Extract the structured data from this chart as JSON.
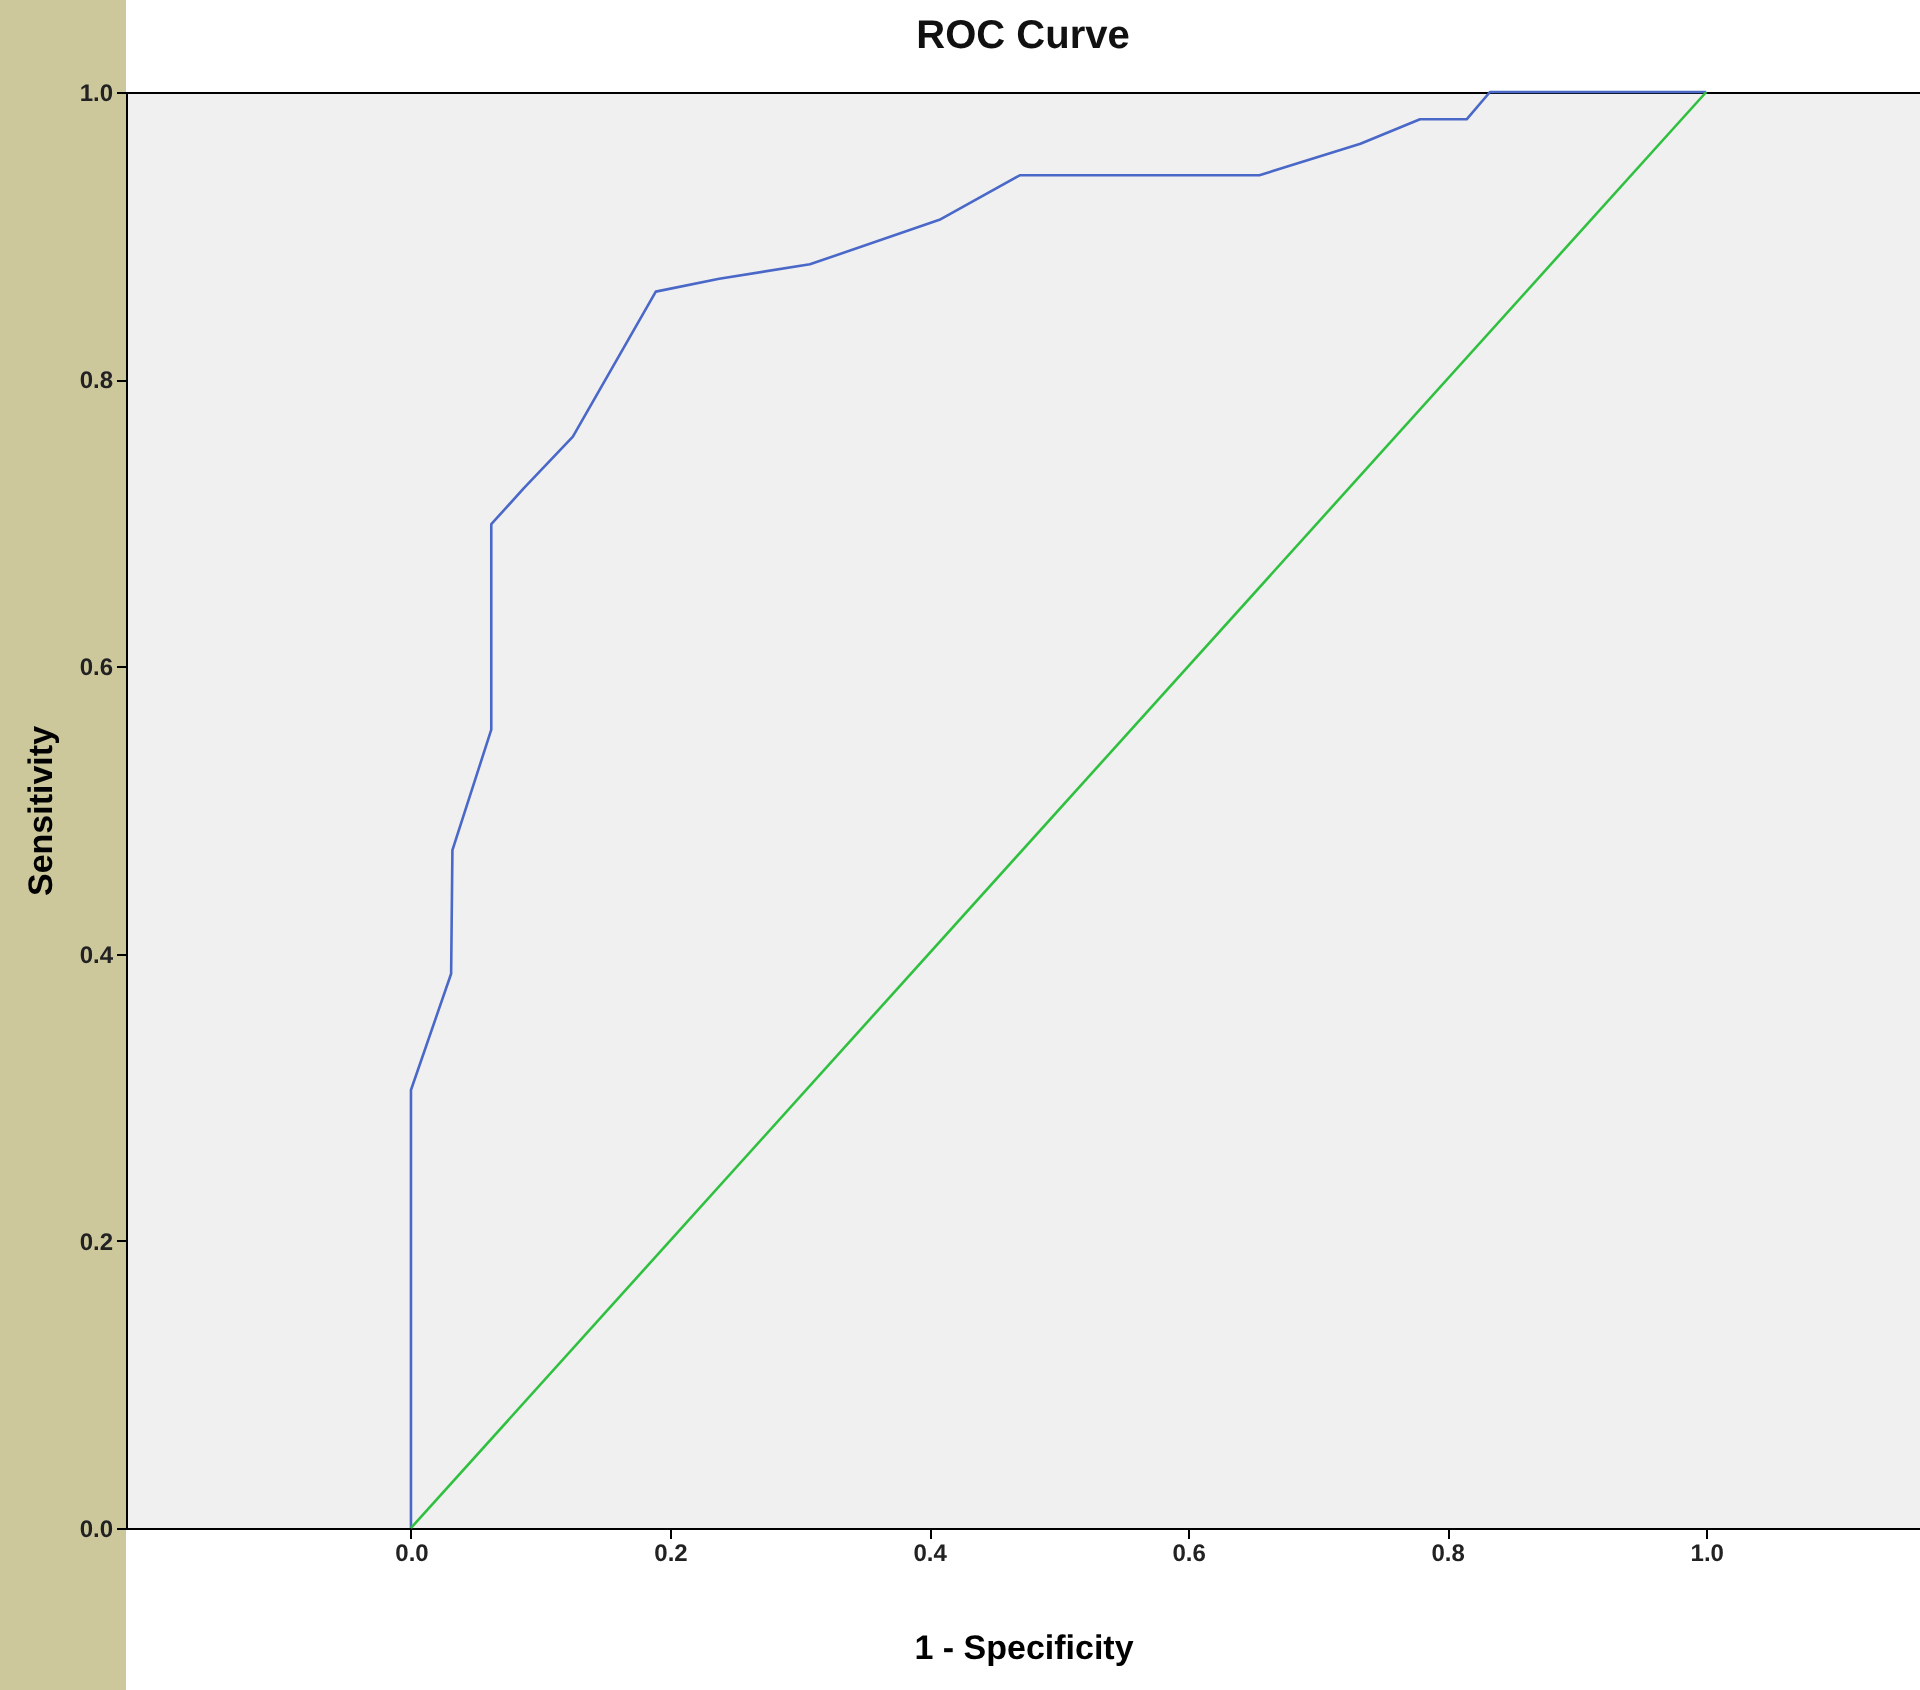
{
  "chart_data": {
    "type": "line",
    "title": "ROC Curve",
    "xlabel": "1 - Specificity",
    "ylabel": "Sensitivity",
    "xlim": [
      -0.22,
      1.165
    ],
    "ylim": [
      0,
      1
    ],
    "xticks": [
      {
        "value": 0,
        "label": "0.0"
      },
      0.2,
      0.4,
      0.6,
      0.8,
      {
        "value": 1,
        "label": "1.0"
      }
    ],
    "yticks": [
      {
        "value": 0,
        "label": "0.0"
      },
      0.2,
      0.4,
      0.6,
      0.8,
      {
        "value": 1,
        "label": "1.0"
      }
    ],
    "grid": false,
    "marker": "none",
    "line_style": "solid",
    "series": [
      {
        "color": "#4a68c8",
        "x": [
          0,
          0,
          0,
          0.031,
          0.032,
          0.062,
          0.062,
          0.087,
          0.125,
          0.189,
          0.238,
          0.308,
          0.408,
          0.47,
          0.655,
          0.733,
          0.779,
          0.815,
          0.833,
          1
        ],
        "values": [
          0,
          0.2,
          0.305,
          0.386,
          0.472,
          0.556,
          0.699,
          0.724,
          0.76,
          0.861,
          0.87,
          0.88,
          0.911,
          0.942,
          0.942,
          0.964,
          0.981,
          0.981,
          1,
          1
        ]
      },
      {
        "type": "line",
        "color": "#30c040",
        "x": [
          0,
          1
        ],
        "values": [
          0,
          1
        ]
      }
    ]
  }
}
